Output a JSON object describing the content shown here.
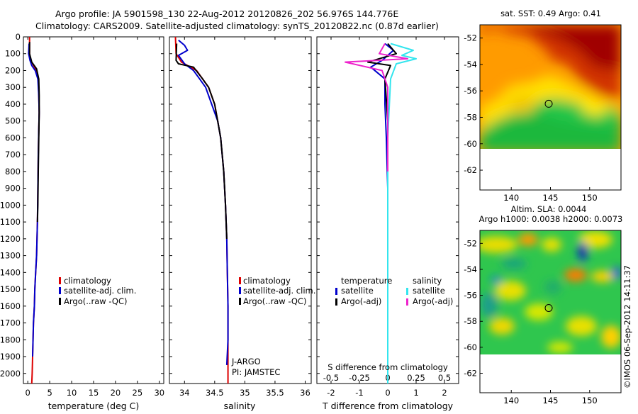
{
  "header": {
    "line1": "Argo profile: JA 5901598_130 22-Aug-2012 20120826_202 56.976S 144.776E",
    "line2": "Climatology: CARS2009. Satellite-adjusted climatology: synTS_20120822.nc (0.87d earlier)"
  },
  "credit": "©IMOS 06-Sep-2012 14:11:37",
  "colors": {
    "climatology": "#dd0000",
    "satellite": "#0000cc",
    "argo": "#000000",
    "sal_satellite": "#33e5ee",
    "sal_argo": "#ee22cc"
  },
  "chart_data": [
    {
      "type": "line",
      "title": "",
      "xlabel": "temperature (deg C)",
      "ylabel": "",
      "xlim": [
        -1,
        31
      ],
      "ylim": [
        2060,
        0
      ],
      "xticks": [
        0,
        5,
        10,
        15,
        20,
        25,
        30
      ],
      "yticks": [
        0,
        100,
        200,
        300,
        400,
        500,
        600,
        700,
        800,
        900,
        1000,
        1100,
        1200,
        1300,
        1400,
        1500,
        1600,
        1700,
        1800,
        1900,
        2000
      ],
      "legend": [
        "climatology",
        "satellite-adj. clim.",
        "Argo(..raw -QC)"
      ],
      "series": [
        {
          "name": "climatology",
          "color": "#dd0000",
          "x": [
            0.4,
            0.4,
            0.6,
            1.8,
            2.4,
            2.5,
            2.6,
            2.5,
            2.4,
            2.3,
            2.2,
            2.0,
            1.8,
            1.6,
            1.5,
            1.3,
            1.2,
            1.1,
            1.0,
            0.9
          ],
          "y": [
            0,
            100,
            140,
            190,
            250,
            350,
            450,
            550,
            700,
            900,
            1100,
            1300,
            1400,
            1500,
            1600,
            1700,
            1800,
            1900,
            2000,
            2060
          ]
        },
        {
          "name": "satellite-adj. clim.",
          "color": "#0000cc",
          "x": [
            0.3,
            0.2,
            0.5,
            0.9,
            1.7,
            2.3,
            2.5,
            2.6,
            2.5,
            2.4,
            2.3,
            2.2,
            2.0,
            1.8,
            1.6,
            1.5,
            1.3,
            1.2,
            1.1
          ],
          "y": [
            40,
            100,
            140,
            170,
            200,
            250,
            350,
            450,
            550,
            700,
            900,
            1100,
            1300,
            1400,
            1500,
            1600,
            1700,
            1800,
            1900
          ]
        },
        {
          "name": "Argo(..raw -QC)",
          "color": "#000000",
          "x": [
            0.4,
            0.4,
            0.9,
            2.0,
            2.5,
            2.6,
            2.6,
            2.5,
            2.4,
            2.3,
            2.2
          ],
          "y": [
            30,
            100,
            150,
            190,
            250,
            350,
            450,
            600,
            800,
            1000,
            1100
          ]
        }
      ]
    },
    {
      "type": "line",
      "title": "",
      "xlabel": "salinity",
      "ylabel": "",
      "xlim": [
        33.75,
        36.1
      ],
      "ylim": [
        2060,
        0
      ],
      "xticks": [
        34,
        34.5,
        35,
        35.5,
        36
      ],
      "legend": [
        "climatology",
        "satellite-adj. clim.",
        "Argo(..raw -QC)"
      ],
      "annotations": [
        "J-ARGO",
        "PI: JAMSTEC"
      ],
      "series": [
        {
          "name": "climatology",
          "color": "#dd0000",
          "x": [
            33.85,
            33.86,
            33.95,
            34.1,
            34.2,
            34.3,
            34.4,
            34.5,
            34.55,
            34.6,
            34.65,
            34.68,
            34.7,
            34.71,
            34.72,
            34.72,
            34.72
          ],
          "y": [
            0,
            100,
            150,
            180,
            200,
            250,
            300,
            400,
            500,
            600,
            800,
            1000,
            1200,
            1400,
            1600,
            1800,
            2060
          ]
        },
        {
          "name": "satellite-adj. clim.",
          "color": "#0000cc",
          "x": [
            33.9,
            34.0,
            34.05,
            33.9,
            34.0,
            34.15,
            34.25,
            34.35,
            34.45,
            34.55,
            34.6,
            34.65,
            34.68,
            34.7,
            34.71,
            34.72,
            34.72,
            34.7
          ],
          "y": [
            20,
            50,
            80,
            110,
            160,
            200,
            250,
            300,
            400,
            500,
            600,
            800,
            1000,
            1200,
            1400,
            1600,
            1800,
            1950
          ]
        },
        {
          "name": "Argo(..raw -QC)",
          "color": "#000000",
          "x": [
            33.87,
            33.86,
            33.9,
            34.15,
            34.3,
            34.4,
            34.5,
            34.55,
            34.6,
            34.65,
            34.68,
            34.7
          ],
          "y": [
            40,
            140,
            160,
            180,
            250,
            300,
            400,
            500,
            600,
            800,
            1000,
            1200
          ]
        }
      ]
    },
    {
      "type": "line",
      "title": "",
      "xlabel": "T difference from climatology",
      "xlabel_top": "S difference from climatology",
      "ylabel": "",
      "xlim": [
        -2.5,
        2.5
      ],
      "ylim": [
        2060,
        0
      ],
      "xticks": [
        -2,
        -1,
        0,
        1,
        2
      ],
      "xticks_top": [
        -0.5,
        -0.25,
        0,
        0.25,
        0.5
      ],
      "legend": [
        "temperature",
        "satellite",
        "Argo(-adj)",
        "salinity",
        "satellite",
        "Argo(-adj)"
      ],
      "series": [
        {
          "name": "temperature satellite",
          "color": "#0000cc",
          "x": [
            -0.1,
            0.2,
            -0.2,
            -0.6,
            -0.1,
            -0.1,
            -0.05,
            0,
            0
          ],
          "y": [
            40,
            80,
            140,
            180,
            250,
            400,
            600,
            900,
            1100
          ]
        },
        {
          "name": "temperature Argo(-adj)",
          "color": "#000000",
          "x": [
            0,
            0.3,
            -0.7,
            0.1,
            -0.1,
            0,
            0
          ],
          "y": [
            40,
            100,
            150,
            170,
            250,
            500,
            900
          ]
        },
        {
          "name": "salinity satellite",
          "color": "#33e5ee",
          "x": [
            0.1,
            0.9,
            0.5,
            1.0,
            0.3,
            0.1,
            0,
            0,
            0
          ],
          "y": [
            40,
            80,
            110,
            130,
            160,
            250,
            600,
            1200,
            2060
          ]
        },
        {
          "name": "salinity Argo(-adj)",
          "color": "#ee22cc",
          "x": [
            -0.1,
            -0.3,
            0.7,
            -1.5,
            -0.2,
            0,
            0
          ],
          "y": [
            40,
            100,
            130,
            150,
            200,
            300,
            800
          ]
        }
      ]
    },
    {
      "type": "heatmap",
      "title": "sat. SST: 0.49 Argo: 0.41",
      "xlim": [
        136,
        154
      ],
      "ylim": [
        -63.5,
        -51
      ],
      "xticks": [
        140,
        145,
        150
      ],
      "yticks": [
        -52,
        -54,
        -56,
        -58,
        -60,
        -62
      ],
      "marker": {
        "lon": 144.776,
        "lat": -56.976
      }
    },
    {
      "type": "heatmap",
      "title": "Altim. SLA: 0.0044",
      "subtitle": "Argo h1000: 0.0038 h2000: 0.0073",
      "xlim": [
        136,
        154
      ],
      "ylim": [
        -63.5,
        -51
      ],
      "xticks": [
        140,
        145,
        150
      ],
      "yticks": [
        -52,
        -54,
        -56,
        -58,
        -60,
        -62
      ],
      "marker": {
        "lon": 144.776,
        "lat": -56.976
      }
    }
  ]
}
